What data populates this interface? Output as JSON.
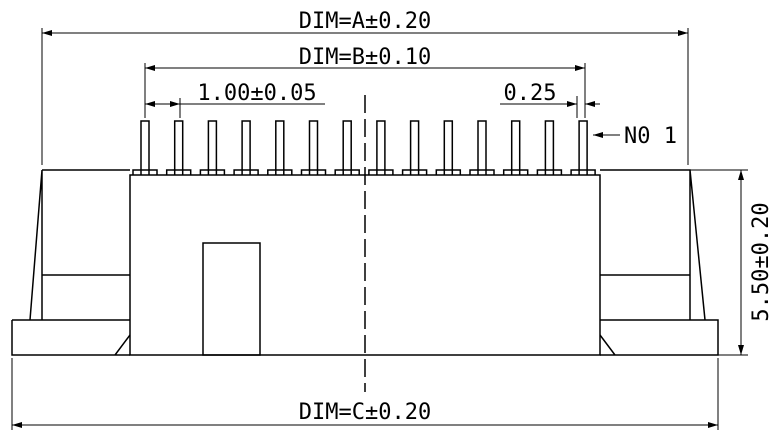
{
  "dimensions": {
    "a": "DIM=A±0.20",
    "b": "DIM=B±0.10",
    "pitch": "1.00±0.05",
    "pin_width": "0.25",
    "height": "5.50±0.20",
    "c": "DIM=C±0.20"
  },
  "pin_label": "N0 1"
}
